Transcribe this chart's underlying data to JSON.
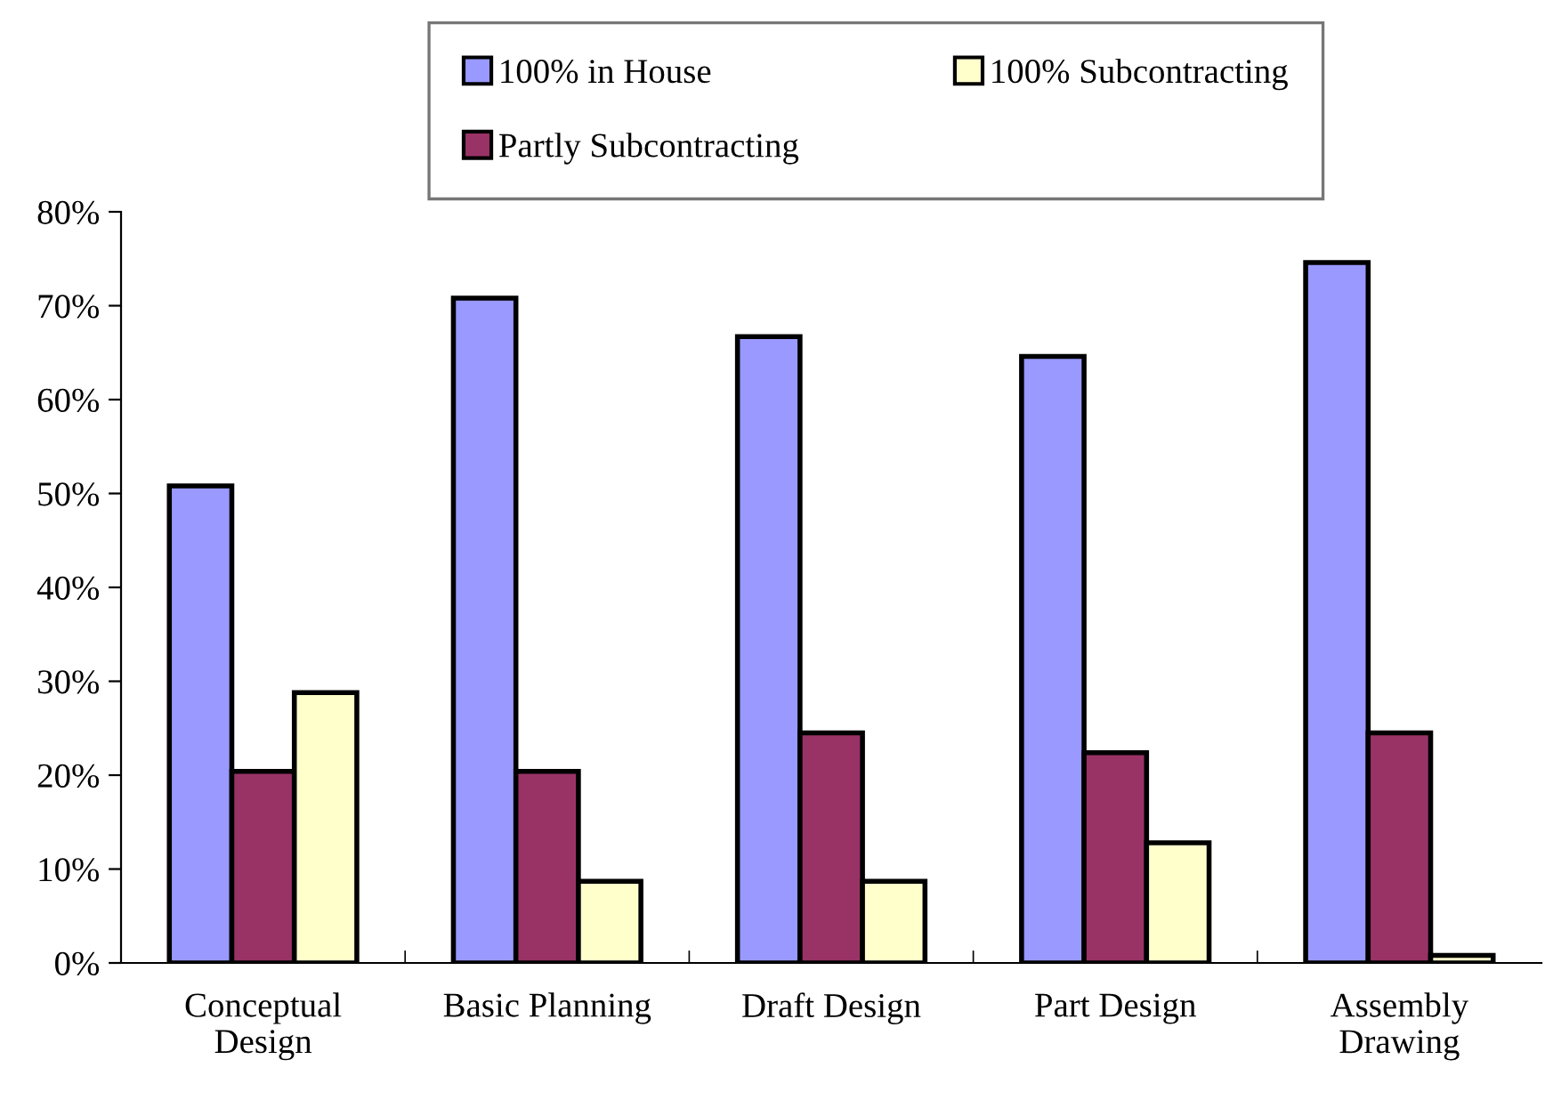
{
  "chart_data": {
    "type": "bar",
    "categories": [
      "Conceptual\nDesign",
      "Basic Planning",
      "Draft Design",
      "Part Design",
      "Assembly\nDrawing"
    ],
    "series": [
      {
        "name": "100% in House",
        "color": "#9999ff",
        "values": [
          50.8,
          70.8,
          66.7,
          64.6,
          74.6
        ]
      },
      {
        "name": "Partly Subcontracting",
        "color": "#993366",
        "values": [
          20.4,
          20.4,
          24.5,
          22.4,
          24.5
        ]
      },
      {
        "name": "100% Subcontracting",
        "color": "#ffffcc",
        "values": [
          28.8,
          8.7,
          8.7,
          12.8,
          0.8
        ]
      }
    ],
    "ylim": [
      0,
      80
    ],
    "yticks": [
      {
        "value": 0,
        "label": "0%"
      },
      {
        "value": 10,
        "label": "10%"
      },
      {
        "value": 20,
        "label": "20%"
      },
      {
        "value": 30,
        "label": "30%"
      },
      {
        "value": 40,
        "label": "40%"
      },
      {
        "value": 50,
        "label": "50%"
      },
      {
        "value": 60,
        "label": "60%"
      },
      {
        "value": 70,
        "label": "70%"
      },
      {
        "value": 80,
        "label": "80%"
      }
    ],
    "grid": false,
    "legend": "top"
  }
}
